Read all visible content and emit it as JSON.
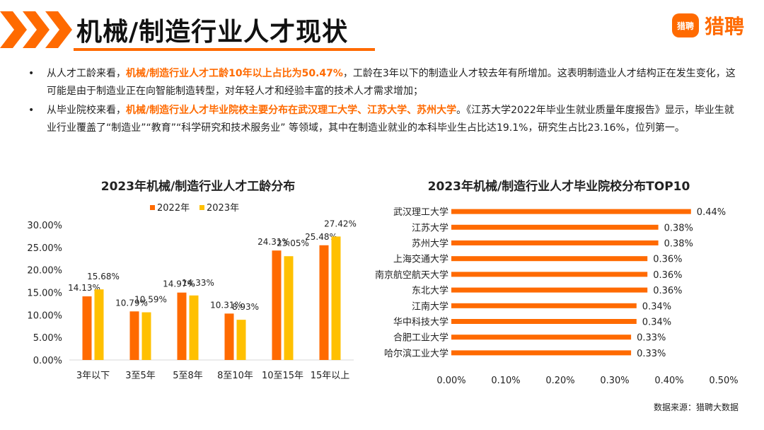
{
  "page": {
    "title": "机械/制造行业人才现状",
    "logo": {
      "badge": "猎聘",
      "text": "猎聘"
    },
    "bullets": [
      {
        "pre": "从人才工龄来看，",
        "highlight": "机械/制造行业人才工龄10年以上占比为50.47%",
        "post": "，工龄在3年以下的制造业人才较去年有所增加。这表明制造业人才结构正在发生变化，这可能是由于制造业正在向智能制造转型，对年轻人才和经验丰富的技术人才需求增加；"
      },
      {
        "pre": "从毕业院校来看，",
        "highlight": "机械/制造行业人才毕业院校主要分布在武汉理工大学、江苏大学、苏州大学",
        "post": "。《江苏大学2022年毕业生就业质量年度报告》显示，毕业生就业行业覆盖了“制造业”“教育”“科学研究和技术服务业” 等领域，其中在制造业就业的本科毕业生占比达19.1%，研究生占比23.16%，位列第一。"
      }
    ],
    "source": "数据来源：猎聘大数据",
    "colors": {
      "accent": "#ff6a00",
      "yellow": "#ffc000"
    }
  },
  "chart_data": [
    {
      "type": "bar",
      "title": "2023年机械/制造行业人才工龄分布",
      "categories": [
        "3年以下",
        "3至5年",
        "5至8年",
        "8至10年",
        "10至15年",
        "15年以上"
      ],
      "series": [
        {
          "name": "2022年",
          "color": "#ff6a00",
          "values": [
            14.13,
            10.79,
            14.97,
            10.31,
            24.31,
            25.48
          ],
          "labels": [
            "14.13%",
            "10.79%",
            "14.97%",
            "10.31%",
            "24.31%",
            "25.48%"
          ]
        },
        {
          "name": "2023年",
          "color": "#ffc000",
          "values": [
            15.68,
            10.59,
            14.33,
            8.93,
            23.05,
            27.42
          ],
          "labels": [
            "15.68%",
            "10.59%",
            "14.33%",
            "8.93%",
            "23.05%",
            "27.42%"
          ]
        }
      ],
      "yticks": [
        "0.00%",
        "5.00%",
        "10.00%",
        "15.00%",
        "20.00%",
        "25.00%",
        "30.00%"
      ],
      "ylim": [
        0,
        30
      ],
      "legend": "top"
    },
    {
      "type": "bar",
      "orientation": "horizontal",
      "title": "2023年机械/制造行业人才毕业院校分布TOP10",
      "categories": [
        "武汉理工大学",
        "江苏大学",
        "苏州大学",
        "上海交通大学",
        "南京航空航天大学",
        "东北大学",
        "江南大学",
        "华中科技大学",
        "合肥工业大学",
        "哈尔滨工业大学"
      ],
      "values": [
        0.44,
        0.38,
        0.38,
        0.36,
        0.36,
        0.36,
        0.34,
        0.34,
        0.33,
        0.33
      ],
      "labels": [
        "0.44%",
        "0.38%",
        "0.38%",
        "0.36%",
        "0.36%",
        "0.36%",
        "0.34%",
        "0.34%",
        "0.33%",
        "0.33%"
      ],
      "xticks": [
        "0.00%",
        "0.10%",
        "0.20%",
        "0.30%",
        "0.40%",
        "0.50%"
      ],
      "xlim": [
        0,
        0.5
      ],
      "color": "#ff6a00"
    }
  ]
}
